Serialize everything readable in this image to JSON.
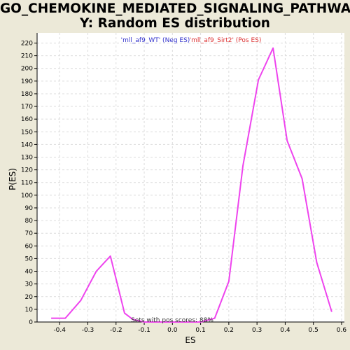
{
  "chart_data": {
    "type": "line",
    "title_line1": "GO_CHEMOKINE_MEDIATED_SIGNALING_PATHWA",
    "title_line2": "Y: Random ES distribution",
    "xlabel": "ES",
    "ylabel": "P(ES)",
    "xlim": [
      -0.48,
      0.61
    ],
    "ylim": [
      0,
      228
    ],
    "x_ticks": [
      -0.4,
      -0.3,
      -0.2,
      -0.1,
      0.0,
      0.1,
      0.2,
      0.3,
      0.4,
      0.5,
      0.6
    ],
    "x_tick_labels": [
      "-0.4",
      "-0.3",
      "-0.2",
      "-0.1",
      "0.0",
      "0.1",
      "0.2",
      "0.3",
      "0.4",
      "0.5",
      "0.6"
    ],
    "y_ticks": [
      0,
      10,
      20,
      30,
      40,
      50,
      60,
      70,
      80,
      90,
      100,
      110,
      120,
      130,
      140,
      150,
      160,
      170,
      180,
      190,
      200,
      210,
      220
    ],
    "grid": true,
    "legend": {
      "neg_label": "'mll_af9_WT' (Neg ES)",
      "pos_label": "'mll_af9_Sirt2' (Pos ES)",
      "neg_color": "#3333cc",
      "pos_color": "#dd3333",
      "placement": "top"
    },
    "annotation": "Sets with pos scores: 88%",
    "series": [
      {
        "color": "#ee44ee",
        "x": [
          -0.43,
          -0.38,
          -0.325,
          -0.27,
          -0.22,
          -0.17,
          -0.14,
          -0.1,
          0.0,
          0.1,
          0.15,
          0.2,
          0.25,
          0.305,
          0.357,
          0.407,
          0.46,
          0.512,
          0.565
        ],
        "y": [
          3,
          3,
          17,
          40,
          52,
          7,
          2,
          0,
          0,
          0,
          3,
          32,
          123,
          191,
          216,
          143,
          113,
          47,
          8
        ]
      }
    ]
  }
}
